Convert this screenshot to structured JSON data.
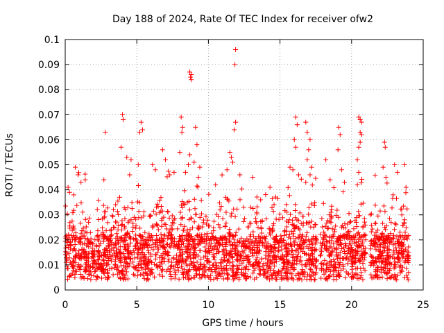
{
  "chart_data": {
    "type": "scatter",
    "title": "Day 188 of 2024, Rate Of TEC Index for receiver ofw2",
    "xlabel": "GPS time / hours",
    "ylabel": "ROTI / TECUs",
    "xlim": [
      0,
      25
    ],
    "ylim": [
      0,
      0.1
    ],
    "x_ticks": [
      0,
      5,
      10,
      15,
      20,
      25
    ],
    "x_tick_labels": [
      "0",
      "5",
      "10",
      "15",
      "20",
      "25"
    ],
    "y_ticks": [
      0,
      0.01,
      0.02,
      0.03,
      0.04,
      0.05,
      0.06,
      0.07,
      0.08,
      0.09,
      0.1
    ],
    "y_tick_labels": [
      "0",
      "0.01",
      "0.02",
      "0.03",
      "0.04",
      "0.05",
      "0.06",
      "0.07",
      "0.08",
      "0.09",
      "0.1"
    ],
    "grid": true,
    "marker": "+",
    "series_color": "#ff0000",
    "data_extent_hours": [
      0,
      24
    ],
    "outliers": [
      {
        "x": 0.2,
        "y": 0.041
      },
      {
        "x": 0.3,
        "y": 0.039
      },
      {
        "x": 0.6,
        "y": 0.038
      },
      {
        "x": 0.7,
        "y": 0.049
      },
      {
        "x": 0.9,
        "y": 0.046
      },
      {
        "x": 1.1,
        "y": 0.043
      },
      {
        "x": 1.4,
        "y": 0.044
      },
      {
        "x": 2.8,
        "y": 0.063
      },
      {
        "x": 2.7,
        "y": 0.044
      },
      {
        "x": 4.0,
        "y": 0.07
      },
      {
        "x": 4.05,
        "y": 0.068
      },
      {
        "x": 3.9,
        "y": 0.057
      },
      {
        "x": 4.3,
        "y": 0.053
      },
      {
        "x": 4.5,
        "y": 0.046
      },
      {
        "x": 4.6,
        "y": 0.052
      },
      {
        "x": 5.3,
        "y": 0.067
      },
      {
        "x": 5.2,
        "y": 0.063
      },
      {
        "x": 5.4,
        "y": 0.064
      },
      {
        "x": 5.1,
        "y": 0.05
      },
      {
        "x": 6.1,
        "y": 0.05
      },
      {
        "x": 6.3,
        "y": 0.048
      },
      {
        "x": 6.8,
        "y": 0.056
      },
      {
        "x": 7.0,
        "y": 0.052
      },
      {
        "x": 7.3,
        "y": 0.046
      },
      {
        "x": 7.6,
        "y": 0.047
      },
      {
        "x": 8.1,
        "y": 0.069
      },
      {
        "x": 8.2,
        "y": 0.065
      },
      {
        "x": 8.15,
        "y": 0.063
      },
      {
        "x": 8.0,
        "y": 0.055
      },
      {
        "x": 8.4,
        "y": 0.047
      },
      {
        "x": 8.7,
        "y": 0.087
      },
      {
        "x": 8.8,
        "y": 0.086
      },
      {
        "x": 8.75,
        "y": 0.085
      },
      {
        "x": 8.8,
        "y": 0.084
      },
      {
        "x": 8.7,
        "y": 0.054
      },
      {
        "x": 8.6,
        "y": 0.05
      },
      {
        "x": 9.1,
        "y": 0.065
      },
      {
        "x": 9.2,
        "y": 0.058
      },
      {
        "x": 9.0,
        "y": 0.051
      },
      {
        "x": 9.4,
        "y": 0.049
      },
      {
        "x": 9.3,
        "y": 0.045
      },
      {
        "x": 11.9,
        "y": 0.096
      },
      {
        "x": 11.85,
        "y": 0.09
      },
      {
        "x": 11.9,
        "y": 0.067
      },
      {
        "x": 11.8,
        "y": 0.064
      },
      {
        "x": 11.6,
        "y": 0.053
      },
      {
        "x": 11.7,
        "y": 0.051
      },
      {
        "x": 11.5,
        "y": 0.055
      },
      {
        "x": 11.3,
        "y": 0.048
      },
      {
        "x": 12.2,
        "y": 0.046
      },
      {
        "x": 10.5,
        "y": 0.042
      },
      {
        "x": 13.1,
        "y": 0.045
      },
      {
        "x": 14.3,
        "y": 0.041
      },
      {
        "x": 15.7,
        "y": 0.049
      },
      {
        "x": 16.1,
        "y": 0.069
      },
      {
        "x": 16.2,
        "y": 0.066
      },
      {
        "x": 16.0,
        "y": 0.06
      },
      {
        "x": 16.1,
        "y": 0.057
      },
      {
        "x": 15.9,
        "y": 0.048
      },
      {
        "x": 16.3,
        "y": 0.046
      },
      {
        "x": 16.9,
        "y": 0.063
      },
      {
        "x": 16.8,
        "y": 0.067
      },
      {
        "x": 17.1,
        "y": 0.06
      },
      {
        "x": 17.0,
        "y": 0.056
      },
      {
        "x": 16.9,
        "y": 0.052
      },
      {
        "x": 17.2,
        "y": 0.049
      },
      {
        "x": 17.1,
        "y": 0.046
      },
      {
        "x": 16.8,
        "y": 0.043
      },
      {
        "x": 18.2,
        "y": 0.052
      },
      {
        "x": 18.5,
        "y": 0.044
      },
      {
        "x": 19.1,
        "y": 0.065
      },
      {
        "x": 19.2,
        "y": 0.062
      },
      {
        "x": 19.05,
        "y": 0.056
      },
      {
        "x": 19.3,
        "y": 0.048
      },
      {
        "x": 19.5,
        "y": 0.043
      },
      {
        "x": 20.5,
        "y": 0.069
      },
      {
        "x": 20.6,
        "y": 0.068
      },
      {
        "x": 20.7,
        "y": 0.067
      },
      {
        "x": 20.6,
        "y": 0.063
      },
      {
        "x": 20.7,
        "y": 0.062
      },
      {
        "x": 20.5,
        "y": 0.057
      },
      {
        "x": 20.6,
        "y": 0.059
      },
      {
        "x": 20.4,
        "y": 0.052
      },
      {
        "x": 20.5,
        "y": 0.047
      },
      {
        "x": 20.4,
        "y": 0.042
      },
      {
        "x": 21.3,
        "y": 0.03
      },
      {
        "x": 22.3,
        "y": 0.059
      },
      {
        "x": 22.35,
        "y": 0.057
      },
      {
        "x": 22.2,
        "y": 0.049
      },
      {
        "x": 22.4,
        "y": 0.045
      },
      {
        "x": 23.0,
        "y": 0.05
      },
      {
        "x": 23.2,
        "y": 0.047
      },
      {
        "x": 23.7,
        "y": 0.05
      },
      {
        "x": 23.8,
        "y": 0.041
      },
      {
        "x": 22.9,
        "y": 0.038
      }
    ]
  }
}
